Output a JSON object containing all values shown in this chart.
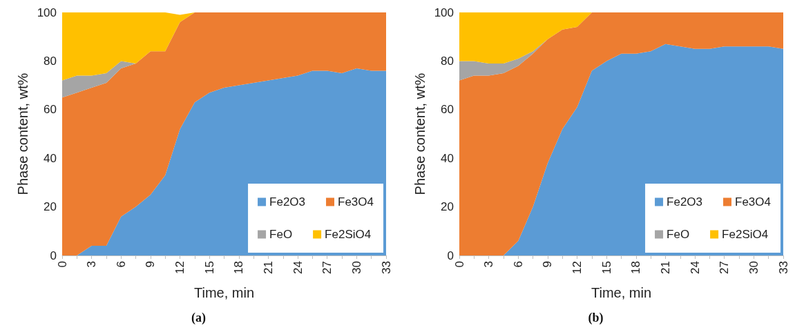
{
  "chart_data": [
    {
      "type": "area",
      "stacked": true,
      "title": "(a)",
      "xlabel": "Time, min",
      "ylabel": "Phase content, wt%",
      "x": [
        0,
        1.5,
        3,
        4.5,
        6,
        7.5,
        9,
        10.5,
        12,
        13.5,
        15,
        16.5,
        18,
        19.5,
        21,
        22.5,
        24,
        25.5,
        27,
        28.5,
        30,
        31.5,
        33
      ],
      "series": [
        {
          "name": "Fe2O3",
          "color": "#5b9bd5",
          "values": [
            0,
            0,
            4,
            4,
            16,
            20,
            25,
            33,
            52,
            63,
            67,
            69,
            70,
            71,
            72,
            73,
            74,
            76,
            76,
            75,
            77,
            76,
            76
          ]
        },
        {
          "name": "Fe3O4",
          "color": "#ed7d31",
          "values": [
            65,
            67,
            65,
            67,
            61,
            59,
            59,
            51,
            44,
            37,
            33,
            31,
            30,
            29,
            28,
            27,
            26,
            24,
            24,
            25,
            23,
            24,
            24
          ]
        },
        {
          "name": "FeO",
          "color": "#a5a5a5",
          "values": [
            7,
            7,
            5,
            4,
            3,
            0,
            0,
            0,
            0,
            0,
            0,
            0,
            0,
            0,
            0,
            0,
            0,
            0,
            0,
            0,
            0,
            0,
            0
          ]
        },
        {
          "name": "Fe2SiO4",
          "color": "#ffc000",
          "values": [
            28,
            26,
            26,
            25,
            20,
            21,
            16,
            16,
            3,
            0,
            0,
            0,
            0,
            0,
            0,
            0,
            0,
            0,
            0,
            0,
            0,
            0,
            0
          ]
        }
      ],
      "xlim": [
        0,
        33
      ],
      "xticks": [
        0,
        {
          "value": 1.5,
          "label": null
        },
        3,
        {
          "value": 4.5,
          "label": null
        },
        6,
        {
          "value": 7.5,
          "label": null
        },
        9,
        {
          "value": 10.5,
          "label": null
        },
        12,
        {
          "value": 13.5,
          "label": null
        },
        15,
        {
          "value": 16.5,
          "label": null
        },
        18,
        {
          "value": 19.5,
          "label": null
        },
        21,
        {
          "value": 22.5,
          "label": null
        },
        24,
        {
          "value": 25.5,
          "label": null
        },
        27,
        {
          "value": 28.5,
          "label": null
        },
        30,
        {
          "value": 31.5,
          "label": null
        },
        33
      ],
      "ylim": [
        0,
        100
      ],
      "yticks": [
        0,
        20,
        40,
        60,
        80,
        100
      ],
      "grid": false,
      "legend": "bottom right"
    },
    {
      "type": "area",
      "stacked": true,
      "title": "(b)",
      "xlabel": "Time, min",
      "ylabel": "Phase content, wt%",
      "x": [
        0,
        1.5,
        3,
        4.5,
        6,
        7.5,
        9,
        10.5,
        12,
        13.5,
        15,
        16.5,
        18,
        19.5,
        21,
        22.5,
        24,
        25.5,
        27,
        28.5,
        30,
        31.5,
        33
      ],
      "series": [
        {
          "name": "Fe2O3",
          "color": "#5b9bd5",
          "values": [
            0,
            0,
            0,
            0,
            6,
            20,
            38,
            52,
            61,
            76,
            80,
            83,
            83,
            84,
            87,
            86,
            85,
            85,
            86,
            86,
            86,
            86,
            85
          ]
        },
        {
          "name": "Fe3O4",
          "color": "#ed7d31",
          "values": [
            72,
            74,
            74,
            75,
            72,
            63,
            51,
            41,
            33,
            24,
            20,
            17,
            17,
            16,
            13,
            14,
            15,
            15,
            14,
            14,
            14,
            14,
            15
          ]
        },
        {
          "name": "FeO",
          "color": "#a5a5a5",
          "values": [
            8,
            6,
            5,
            4,
            3,
            1,
            0,
            0,
            0,
            0,
            0,
            0,
            0,
            0,
            0,
            0,
            0,
            0,
            0,
            0,
            0,
            0,
            0
          ]
        },
        {
          "name": "Fe2SiO4",
          "color": "#ffc000",
          "values": [
            20,
            20,
            21,
            21,
            19,
            16,
            11,
            7,
            6,
            0,
            0,
            0,
            0,
            0,
            0,
            0,
            0,
            0,
            0,
            0,
            0,
            0,
            0
          ]
        }
      ],
      "xlim": [
        0,
        33
      ],
      "xticks": [
        0,
        {
          "value": 1.5,
          "label": null
        },
        3,
        {
          "value": 4.5,
          "label": null
        },
        6,
        {
          "value": 7.5,
          "label": null
        },
        9,
        {
          "value": 10.5,
          "label": null
        },
        12,
        {
          "value": 13.5,
          "label": null
        },
        15,
        {
          "value": 16.5,
          "label": null
        },
        18,
        {
          "value": 19.5,
          "label": null
        },
        21,
        {
          "value": 22.5,
          "label": null
        },
        24,
        {
          "value": 25.5,
          "label": null
        },
        27,
        {
          "value": 28.5,
          "label": null
        },
        30,
        {
          "value": 31.5,
          "label": null
        },
        33
      ],
      "ylim": [
        0,
        100
      ],
      "yticks": [
        0,
        20,
        40,
        60,
        80,
        100
      ],
      "grid": false,
      "legend": "bottom right"
    }
  ]
}
